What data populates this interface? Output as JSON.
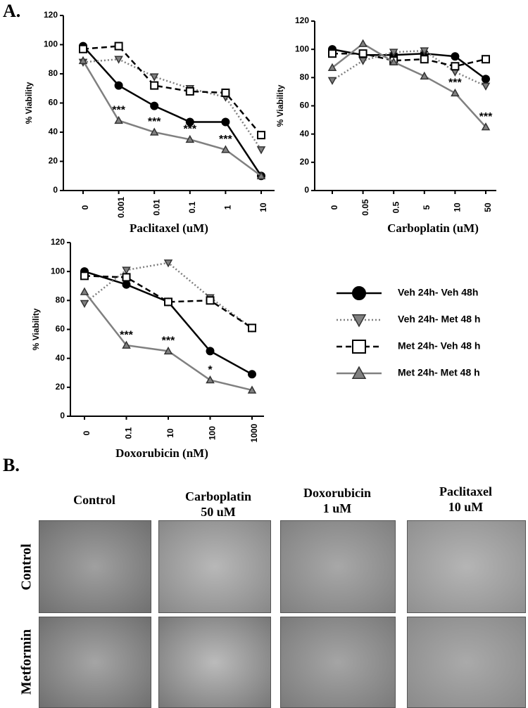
{
  "panels": {
    "a": "A.",
    "b": "B."
  },
  "chart_data": [
    {
      "type": "line",
      "ylabel": "% Viability",
      "xlabel": "Paclitaxel (uM)",
      "categories": [
        "0",
        "0.001",
        "0.01",
        "0.1",
        "1",
        "10"
      ],
      "ylim": [
        0,
        120
      ],
      "yticks": [
        0,
        20,
        40,
        60,
        80,
        100,
        120
      ],
      "series": [
        {
          "name": "Veh 24h- Veh  48h",
          "color": "#000000",
          "dash": "solid",
          "marker": "circle",
          "values": [
            99,
            72,
            58,
            47,
            47,
            10
          ]
        },
        {
          "name": "Veh 24h- Met 48 h",
          "color": "#808080",
          "dash": "dotted",
          "marker": "triangle-down",
          "values": [
            88,
            90,
            78,
            70,
            64,
            28
          ]
        },
        {
          "name": "Met 24h- Veh 48 h",
          "color": "#000000",
          "dash": "dashed",
          "marker": "square",
          "values": [
            97,
            99,
            72,
            68,
            67,
            38
          ]
        },
        {
          "name": "Met 24h- Met 48 h",
          "color": "#808080",
          "dash": "solid",
          "marker": "triangle-up",
          "values": [
            89,
            48,
            40,
            35,
            28,
            10
          ]
        }
      ],
      "annotations": [
        {
          "text": "***",
          "x": "0.001"
        },
        {
          "text": "***",
          "x": "0.01"
        },
        {
          "text": "***",
          "x": "0.1"
        },
        {
          "text": "***",
          "x": "1"
        }
      ]
    },
    {
      "type": "line",
      "ylabel": "% Viability",
      "xlabel": "Carboplatin (uM)",
      "categories": [
        "0",
        "0.05",
        "0.5",
        "5",
        "10",
        "50"
      ],
      "ylim": [
        0,
        120
      ],
      "yticks": [
        0,
        20,
        40,
        60,
        80,
        100,
        120
      ],
      "series": [
        {
          "name": "Veh 24h- Veh  48h",
          "color": "#000000",
          "dash": "solid",
          "marker": "circle",
          "values": [
            100,
            96,
            96,
            97,
            95,
            79
          ]
        },
        {
          "name": "Veh 24h- Met 48 h",
          "color": "#808080",
          "dash": "dotted",
          "marker": "triangle-down",
          "values": [
            78,
            92,
            98,
            99,
            84,
            74
          ]
        },
        {
          "name": "Met 24h- Veh 48 h",
          "color": "#000000",
          "dash": "dashed",
          "marker": "square",
          "values": [
            97,
            97,
            92,
            93,
            88,
            93
          ]
        },
        {
          "name": "Met 24h- Met 48 h",
          "color": "#808080",
          "dash": "solid",
          "marker": "triangle-up",
          "values": [
            87,
            104,
            91,
            81,
            69,
            45
          ]
        }
      ],
      "annotations": [
        {
          "text": "***",
          "x": "10"
        },
        {
          "text": "***",
          "x": "50"
        }
      ]
    },
    {
      "type": "line",
      "ylabel": "% Viability",
      "xlabel": "Doxorubicin (nM)",
      "categories": [
        "0",
        "0.1",
        "10",
        "100",
        "1000"
      ],
      "ylim": [
        0,
        120
      ],
      "yticks": [
        0,
        20,
        40,
        60,
        80,
        100,
        120
      ],
      "series": [
        {
          "name": "Veh 24h- Veh  48h",
          "color": "#000000",
          "dash": "solid",
          "marker": "circle",
          "values": [
            100,
            91,
            79,
            45,
            29
          ]
        },
        {
          "name": "Veh 24h- Met 48 h",
          "color": "#808080",
          "dash": "dotted",
          "marker": "triangle-down",
          "values": [
            78,
            101,
            106,
            82,
            61
          ]
        },
        {
          "name": "Met 24h- Veh 48 h",
          "color": "#000000",
          "dash": "dashed",
          "marker": "square",
          "values": [
            97,
            96,
            79,
            80,
            61
          ]
        },
        {
          "name": "Met 24h- Met 48 h",
          "color": "#808080",
          "dash": "solid",
          "marker": "triangle-up",
          "values": [
            86,
            49,
            45,
            25,
            18
          ]
        }
      ],
      "annotations": [
        {
          "text": "***",
          "x": "0.1"
        },
        {
          "text": "***",
          "x": "10"
        },
        {
          "text": "*",
          "x": "100"
        }
      ],
      "legend": "right"
    }
  ],
  "images": {
    "columns": [
      "Control",
      "Carboplatin\n50 uM",
      "Doxorubicin\n1 uM",
      "Paclitaxel\n10 uM"
    ],
    "rows": [
      "Control",
      "Metformin"
    ]
  }
}
